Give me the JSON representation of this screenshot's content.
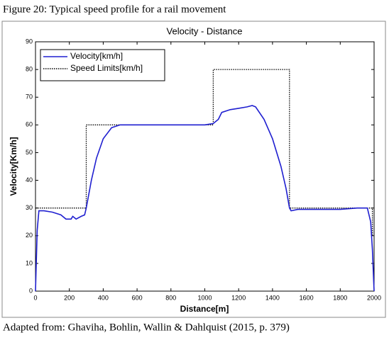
{
  "caption": "Figure 20: Typical speed profile for a rail movement",
  "source": "Adapted from: Ghaviha, Bohlin, Wallin & Dahlquist (2015, p. 379)",
  "chart_data": {
    "type": "line",
    "title": "Velocity - Distance",
    "x_label": "Distance[m]",
    "y_label": "Velocity[Km/h]",
    "xlim": [
      0,
      2000
    ],
    "xticks": [
      0,
      200,
      400,
      600,
      800,
      1000,
      1200,
      1400,
      1600,
      1800,
      2000
    ],
    "ylim": [
      0,
      90
    ],
    "yticks": [
      0,
      10,
      20,
      30,
      40,
      50,
      60,
      70,
      80,
      90
    ],
    "grid": false,
    "legend": "upper left",
    "series": [
      {
        "name": "Velocity[km/h]",
        "color": "#1f1fd0",
        "style": "solid",
        "x": [
          0,
          10,
          20,
          50,
          100,
          150,
          180,
          210,
          220,
          240,
          270,
          290,
          300,
          330,
          360,
          400,
          450,
          500,
          600,
          800,
          1000,
          1050,
          1080,
          1100,
          1150,
          1200,
          1250,
          1280,
          1300,
          1350,
          1400,
          1450,
          1480,
          1500,
          1510,
          1550,
          1600,
          1700,
          1800,
          1900,
          1960,
          1980,
          1990,
          2000
        ],
        "values": [
          0,
          22,
          29,
          29,
          28.5,
          27.5,
          26,
          26,
          27,
          26,
          27,
          27.5,
          30,
          40,
          48,
          55,
          59,
          60,
          60,
          60,
          60,
          60.5,
          62,
          64.5,
          65.5,
          66,
          66.5,
          67,
          66.5,
          62,
          55,
          45,
          37,
          30,
          29,
          29.5,
          29.5,
          29.5,
          29.5,
          30,
          30,
          25,
          15,
          0
        ]
      },
      {
        "name": "Speed Limits[km/h]",
        "color": "#000000",
        "style": "dotted",
        "x": [
          0,
          300,
          300,
          1050,
          1050,
          1500,
          1500,
          1990,
          1990
        ],
        "values": [
          30,
          30,
          60,
          60,
          80,
          80,
          30,
          30,
          20
        ]
      }
    ]
  }
}
